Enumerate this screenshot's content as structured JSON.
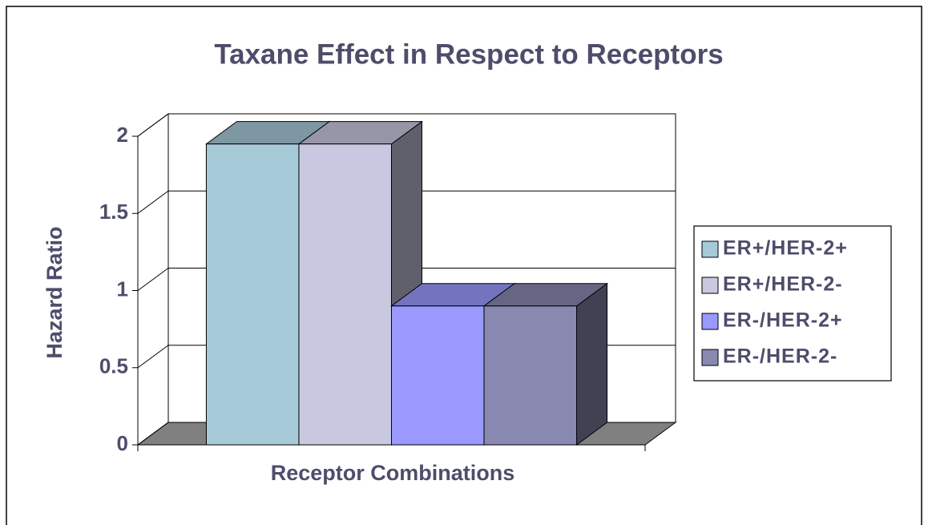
{
  "chart_data": {
    "type": "bar3d",
    "title": "Taxane Effect in Respect to Receptors",
    "y_label": "Hazard Ratio",
    "x_label": "Receptor Combinations",
    "categories": [
      null
    ],
    "series": [
      {
        "name": "ER+/HER-2+",
        "color": "#a6cad8",
        "values": [
          1.95
        ]
      },
      {
        "name": "ER+/HER-2-",
        "color": "#c8c8e0",
        "values": [
          1.95
        ]
      },
      {
        "name": "ER-/HER-2+",
        "color": "#9999ff",
        "values": [
          0.9
        ]
      },
      {
        "name": "ER-/HER-2-",
        "color": "#8888b0",
        "values": [
          0.9
        ]
      }
    ],
    "ylim": [
      0,
      2
    ],
    "yticks": [
      0,
      0.5,
      1,
      1.5,
      2
    ],
    "grid": true,
    "legend": "right"
  }
}
